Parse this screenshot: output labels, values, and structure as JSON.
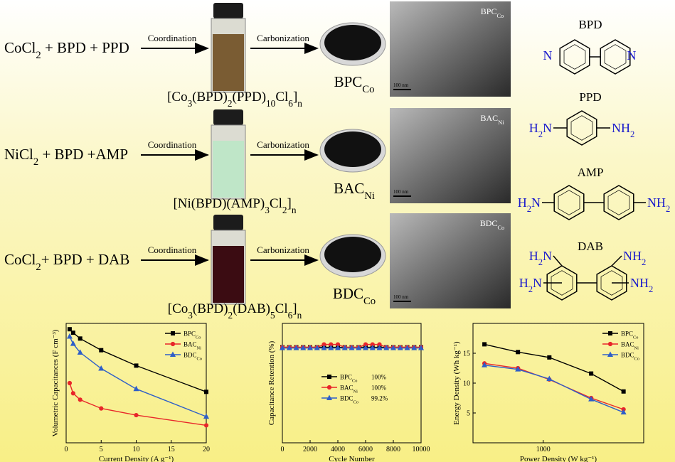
{
  "scheme": {
    "rows": [
      {
        "reactants": [
          {
            "text": "CoCl"
          },
          {
            "text": "2",
            "sub": true
          },
          {
            "text": " + BPD + PPD"
          }
        ],
        "step1": "Coordination",
        "step2": "Carbonization",
        "complex": [
          {
            "text": "[Co"
          },
          {
            "text": "3",
            "sub": true
          },
          {
            "text": "(BPD)"
          },
          {
            "text": "2",
            "sub": true
          },
          {
            "text": "(PPD)"
          },
          {
            "text": "10",
            "sub": true
          },
          {
            "text": "Cl"
          },
          {
            "text": "6",
            "sub": true
          },
          {
            "text": "]"
          },
          {
            "text": "n",
            "sub": true
          }
        ],
        "product": [
          {
            "text": "BPC"
          },
          {
            "text": "Co",
            "sub": true
          }
        ],
        "tem_label": [
          {
            "text": "BPC"
          },
          {
            "text": "Co",
            "sub": true
          }
        ],
        "scale_bar": "100 nm"
      },
      {
        "reactants": [
          {
            "text": "NiCl"
          },
          {
            "text": "2",
            "sub": true
          },
          {
            "text": " + BPD +AMP"
          }
        ],
        "step1": "Coordination",
        "step2": "Carbonization",
        "complex": [
          {
            "text": "[Ni(BPD)(AMP)"
          },
          {
            "text": "3",
            "sub": true
          },
          {
            "text": "Cl"
          },
          {
            "text": "2",
            "sub": true
          },
          {
            "text": "]"
          },
          {
            "text": "n",
            "sub": true
          }
        ],
        "product": [
          {
            "text": "BAC"
          },
          {
            "text": "Ni",
            "sub": true
          }
        ],
        "tem_label": [
          {
            "text": "BAC"
          },
          {
            "text": "Ni",
            "sub": true
          }
        ],
        "scale_bar": "100 nm"
      },
      {
        "reactants": [
          {
            "text": "CoCl"
          },
          {
            "text": "2",
            "sub": true
          },
          {
            "text": "+ BPD + DAB"
          }
        ],
        "step1": "Coordination",
        "step2": "Carbonization",
        "complex": [
          {
            "text": "[Co"
          },
          {
            "text": "3",
            "sub": true
          },
          {
            "text": "(BPD)"
          },
          {
            "text": "2",
            "sub": true
          },
          {
            "text": "(DAB)"
          },
          {
            "text": "5",
            "sub": true
          },
          {
            "text": "Cl"
          },
          {
            "text": "6",
            "sub": true
          },
          {
            "text": "]"
          },
          {
            "text": "n",
            "sub": true
          }
        ],
        "product": [
          {
            "text": "BDC"
          },
          {
            "text": "Co",
            "sub": true
          }
        ],
        "tem_label": [
          {
            "text": "BDC"
          },
          {
            "text": "Co",
            "sub": true
          }
        ],
        "scale_bar": "100 nm"
      }
    ],
    "structures": [
      {
        "name": "BPD",
        "atoms": [
          [
            {
              "text": "N"
            }
          ],
          [
            {
              "text": "N"
            }
          ]
        ]
      },
      {
        "name": "PPD",
        "atoms": [
          [
            {
              "text": "H"
            },
            {
              "text": "2",
              "sub": true
            },
            {
              "text": "N"
            }
          ],
          [
            {
              "text": "NH"
            },
            {
              "text": "2",
              "sub": true
            }
          ]
        ]
      },
      {
        "name": "AMP",
        "atoms": [
          [
            {
              "text": "H"
            },
            {
              "text": "2",
              "sub": true
            },
            {
              "text": "N"
            }
          ],
          [
            {
              "text": "NH"
            },
            {
              "text": "2",
              "sub": true
            }
          ]
        ]
      },
      {
        "name": "DAB",
        "atoms": [
          [
            {
              "text": "H"
            },
            {
              "text": "2",
              "sub": true
            },
            {
              "text": "N"
            }
          ],
          [
            {
              "text": "H"
            },
            {
              "text": "2",
              "sub": true
            },
            {
              "text": "N"
            }
          ],
          [
            {
              "text": "NH"
            },
            {
              "text": "2",
              "sub": true
            }
          ],
          [
            {
              "text": "NH"
            },
            {
              "text": "2",
              "sub": true
            }
          ]
        ]
      }
    ]
  },
  "chart_data": [
    {
      "type": "line",
      "xlabel": "Current Density (A g⁻¹)",
      "ylabel": "Volumetric Capacitances (F cm⁻³)",
      "x": [
        0.5,
        1,
        2,
        5,
        10,
        20
      ],
      "xlim": [
        0,
        20
      ],
      "xticks": [
        0,
        5,
        10,
        15,
        20
      ],
      "ylim": [
        100,
        510
      ],
      "yticks": [],
      "legend": "upper right",
      "series": [
        {
          "name": "BPC",
          "subscript": "Co",
          "color": "#000000",
          "marker": "square",
          "values": [
            490,
            478,
            458,
            418,
            365,
            275
          ]
        },
        {
          "name": "BAC",
          "subscript": "Ni",
          "color": "#e8262a",
          "marker": "circle",
          "values": [
            305,
            270,
            248,
            218,
            195,
            160
          ]
        },
        {
          "name": "BDC",
          "subscript": "Co",
          "color": "#2f5fc8",
          "marker": "triangle",
          "values": [
            465,
            440,
            410,
            355,
            285,
            190
          ]
        }
      ]
    },
    {
      "type": "line",
      "xlabel": "Cycle Number",
      "ylabel": "Capacitance Retention (%)",
      "x": [
        0,
        500,
        1000,
        1500,
        2000,
        2500,
        3000,
        3500,
        4000,
        4500,
        5000,
        5500,
        6000,
        6500,
        7000,
        7500,
        8000,
        8500,
        9000,
        9500,
        10000
      ],
      "xlim": [
        0,
        10000
      ],
      "xticks": [
        0,
        2000,
        4000,
        6000,
        8000,
        10000
      ],
      "ylim": [
        0,
        125
      ],
      "yticks": [],
      "legend": "center",
      "series": [
        {
          "name": "BPC",
          "subscript": "Co",
          "legend_text": "100%",
          "color": "#000000",
          "marker": "square",
          "values": [
            100,
            100,
            100,
            100,
            100,
            100,
            100,
            100,
            100,
            100,
            100,
            100,
            100,
            100,
            100,
            100,
            100,
            100,
            100,
            100,
            100
          ]
        },
        {
          "name": "BAC",
          "subscript": "Ni",
          "legend_text": "100%",
          "color": "#e8262a",
          "marker": "circle",
          "values": [
            100,
            100,
            100,
            100,
            100,
            100,
            103,
            103,
            103,
            100,
            100,
            100,
            103,
            103,
            103,
            100,
            100,
            100,
            100,
            100,
            100
          ]
        },
        {
          "name": "BDC",
          "subscript": "Co",
          "legend_text": "99.2%",
          "color": "#2f5fc8",
          "marker": "triangle",
          "values": [
            99.2,
            99.2,
            99.2,
            99.2,
            99.2,
            99.2,
            99.2,
            99.2,
            99.2,
            99.2,
            99.2,
            99.2,
            99.2,
            99.2,
            99.2,
            99.2,
            99.2,
            99.2,
            99.2,
            99.2,
            99.2
          ]
        }
      ]
    },
    {
      "type": "line",
      "xlabel": "Power Density (W kg⁻¹)",
      "ylabel": "Energy Density (Wh kg⁻¹)",
      "xscale": "log",
      "x": [
        260,
        560,
        1150,
        3000,
        6300
      ],
      "xlim": [
        200,
        10000
      ],
      "xticks": [
        1000
      ],
      "ylim": [
        0,
        20
      ],
      "yticks": [
        5,
        10,
        15
      ],
      "legend": "upper right",
      "series": [
        {
          "name": "BPC",
          "subscript": "Co",
          "color": "#000000",
          "marker": "square",
          "values": [
            16.5,
            15.2,
            14.3,
            11.6,
            8.6
          ]
        },
        {
          "name": "BAC",
          "subscript": "Ni",
          "color": "#e8262a",
          "marker": "circle",
          "values": [
            13.3,
            12.5,
            10.6,
            7.5,
            5.6
          ]
        },
        {
          "name": "BDC",
          "subscript": "Co",
          "color": "#2f5fc8",
          "marker": "triangle",
          "values": [
            13.0,
            12.3,
            10.7,
            7.3,
            5.1
          ]
        }
      ]
    }
  ]
}
